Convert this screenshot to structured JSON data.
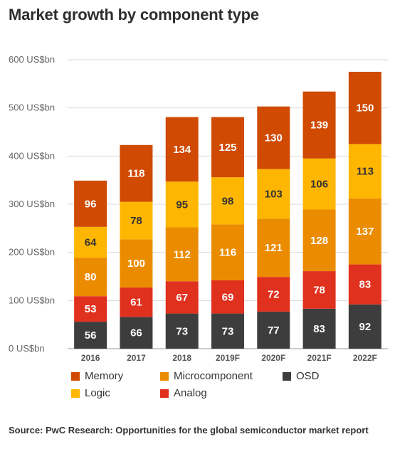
{
  "title": "Market growth by component type",
  "source": "Source: PwC Research: Opportunities for the global semiconductor market report",
  "chart_data": {
    "type": "bar",
    "stacked": true,
    "title": "Market growth by component type",
    "xlabel": "",
    "ylabel": "",
    "categories": [
      "2016",
      "2017",
      "2018",
      "2019F",
      "2020F",
      "2021F",
      "2022F"
    ],
    "y_ticks": [
      "0 US$bn",
      "100 US$bn",
      "200 US$bn",
      "300 US$bn",
      "400 US$bn",
      "500 US$bn",
      "600 US$bn"
    ],
    "ylim": [
      0,
      600
    ],
    "grid": true,
    "legend_position": "bottom",
    "series": [
      {
        "name": "OSD",
        "color": "#3d3d3d",
        "label_color": "#ffffff",
        "values": [
          56,
          66,
          73,
          73,
          77,
          83,
          92
        ]
      },
      {
        "name": "Analog",
        "color": "#e0301e",
        "label_color": "#ffffff",
        "values": [
          53,
          61,
          67,
          69,
          72,
          78,
          83
        ]
      },
      {
        "name": "Microcomponent",
        "color": "#eb8c00",
        "label_color": "#ffffff",
        "values": [
          80,
          100,
          112,
          116,
          121,
          128,
          137
        ]
      },
      {
        "name": "Logic",
        "color": "#ffb600",
        "label_color": "#333333",
        "values": [
          64,
          78,
          95,
          98,
          103,
          106,
          113
        ]
      },
      {
        "name": "Memory",
        "color": "#d04a02",
        "label_color": "#ffffff",
        "values": [
          96,
          118,
          134,
          125,
          130,
          139,
          150
        ]
      }
    ]
  },
  "legend": [
    {
      "name": "Memory",
      "color": "#d04a02"
    },
    {
      "name": "Microcomponent",
      "color": "#eb8c00"
    },
    {
      "name": "OSD",
      "color": "#3d3d3d"
    },
    {
      "name": "Logic",
      "color": "#ffb600"
    },
    {
      "name": "Analog",
      "color": "#e0301e"
    }
  ]
}
